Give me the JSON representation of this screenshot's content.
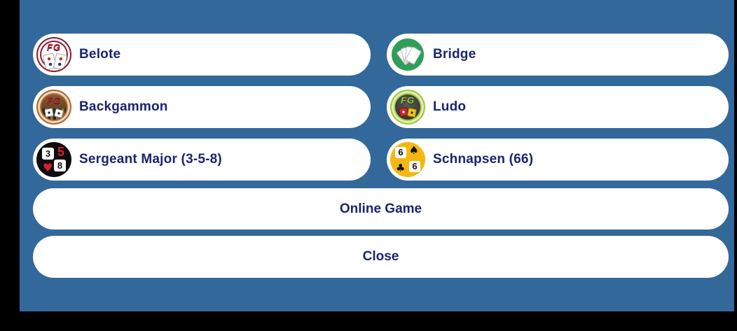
{
  "palette": {
    "letterbox_black": "#000000",
    "panel_blue": "#33689B",
    "pill_white": "#FFFFFF",
    "label_navy": "#1B2371",
    "belote_ring_maroon": "#8E1B33",
    "bridge_green": "#2F9E58",
    "backgammon_copper": "#B06A2E",
    "ludo_lime": "#A6CB38",
    "sergeant_black": "#0D0D0D",
    "schnapsen_amber": "#F5B711",
    "suit_red": "#D6202C"
  },
  "game_menu": {
    "items": [
      {
        "label": "Belote",
        "icon": {
          "name": "belote-fg-cards-icon",
          "monogram": "FG"
        }
      },
      {
        "label": "Bridge",
        "icon": {
          "name": "bridge-card-fan-icon"
        }
      },
      {
        "label": "Backgammon",
        "icon": {
          "name": "backgammon-fg-board-icon",
          "monogram": "FG"
        }
      },
      {
        "label": "Ludo",
        "icon": {
          "name": "ludo-fg-board-icon",
          "monogram": "FG"
        }
      },
      {
        "label": "Sergeant Major (3-5-8)",
        "icon": {
          "name": "sergeant-major-358-icon",
          "top_left": "3",
          "top_right": "5",
          "bottom_left": "♥",
          "bottom_right": "8"
        }
      },
      {
        "label": "Schnapsen (66)",
        "icon": {
          "name": "schnapsen-66-icon",
          "top_left": "6",
          "top_right": "♠",
          "bottom_left": "♣",
          "bottom_right": "6"
        }
      }
    ]
  },
  "actions": {
    "online_game_label": "Online Game",
    "close_label": "Close"
  }
}
